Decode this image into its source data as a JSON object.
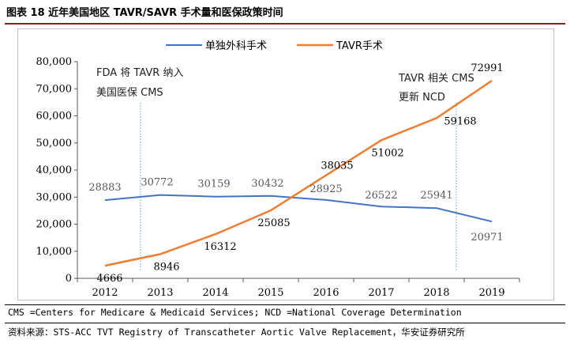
{
  "figure_title": "图表 18 近年美国地区 TAVR/SAVR 手术量和医保政策时间",
  "note": "CMS =Centers for Medicare & Medicaid Services; NCD =National Coverage Determination",
  "source": "资料来源：STS-ACC TVT Registry of Transcatheter Aortic Valve Replacement，华安证券研究所",
  "colors": {
    "savr": "#4472c4",
    "tavr": "#ed7d31",
    "marker": "#5b9bd5",
    "title_rule": "#8c1d24"
  },
  "chart_data": {
    "type": "line",
    "x": [
      "2012",
      "2013",
      "2014",
      "2015",
      "2016",
      "2017",
      "2018",
      "2019"
    ],
    "ylim": [
      0,
      80000
    ],
    "yticks": [
      0,
      10000,
      20000,
      30000,
      40000,
      50000,
      60000,
      70000,
      80000
    ],
    "ytick_labels": [
      "0",
      "10,000",
      "20,000",
      "30,000",
      "40,000",
      "50,000",
      "60,000",
      "70,000",
      "80,000"
    ],
    "grid": false,
    "legend": "top-center",
    "series": [
      {
        "name": "单独外科手术",
        "values": [
          28883,
          30772,
          30159,
          30432,
          28925,
          26522,
          25941,
          20971
        ],
        "labels": [
          "28883",
          "30772",
          "30159",
          "30432",
          "28925",
          "26522",
          "25941",
          "20971"
        ]
      },
      {
        "name": "TAVR手术",
        "values": [
          4666,
          8946,
          16312,
          25085,
          38035,
          51002,
          59168,
          72991
        ],
        "labels": [
          "4666",
          "8946",
          "16312",
          "25085",
          "38035",
          "51002",
          "59168",
          "72991"
        ]
      }
    ],
    "annotations": [
      {
        "x": "2013",
        "lines": [
          "FDA 将 TAVR 纳入",
          "美国医保 CMS"
        ]
      },
      {
        "x": "2019",
        "lines": [
          "TAVR 相关 CMS",
          "更新 NCD"
        ]
      }
    ]
  }
}
